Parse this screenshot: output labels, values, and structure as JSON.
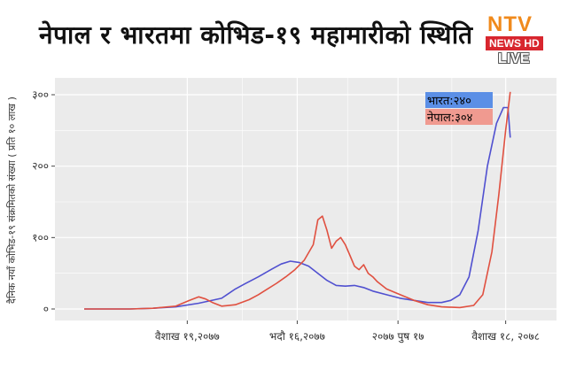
{
  "header": {
    "title": "नेपाल र भारतमा कोभिड-१९ महामारीको स्थिति"
  },
  "logo": {
    "brand": "NTV",
    "sub": "NEWS HD",
    "live": "LIVE"
  },
  "colors": {
    "india": "#5050d0",
    "nepal": "#e05040",
    "panel": "#ebebeb",
    "grid": "#ffffff",
    "india_label_bg": "#5b8fe6",
    "nepal_label_bg": "#f09a90"
  },
  "chart_data": {
    "type": "line",
    "title": "नेपाल र भारतमा कोभिड-१९ महामारीको स्थिति",
    "ylabel": "दैनिक नयाँ कोभिड-१९ संक्रमितको संख्या ( प्रति १० लाख )",
    "xlabel": "",
    "ylim": [
      -10,
      310
    ],
    "xlim": [
      0,
      100
    ],
    "yticks": [
      {
        "value": 0,
        "label": "०"
      },
      {
        "value": 100,
        "label": "१००"
      },
      {
        "value": 200,
        "label": "२००"
      },
      {
        "value": 300,
        "label": "३००"
      }
    ],
    "xticks": [
      {
        "value": 22.5,
        "label": "वैशाख १९,२०७७"
      },
      {
        "value": 46.5,
        "label": "भदौ १६,२०७७"
      },
      {
        "value": 68.5,
        "label": "२०७७ पुष १७"
      },
      {
        "value": 92,
        "label": "वैशाख १८, २०७८"
      }
    ],
    "annotations": [
      {
        "label": "भारत:२४०",
        "series": "भारत"
      },
      {
        "label": "नेपाल:३०४",
        "series": "नेपाल"
      }
    ],
    "grid": true,
    "series": [
      {
        "name": "भारत",
        "color": "#5050d0",
        "points": [
          [
            0,
            0
          ],
          [
            5,
            0
          ],
          [
            10,
            0
          ],
          [
            15,
            1
          ],
          [
            20,
            3
          ],
          [
            25,
            8
          ],
          [
            30,
            15
          ],
          [
            33,
            28
          ],
          [
            35,
            35
          ],
          [
            38,
            45
          ],
          [
            41,
            56
          ],
          [
            43,
            63
          ],
          [
            45,
            67
          ],
          [
            47,
            65
          ],
          [
            49,
            60
          ],
          [
            51,
            50
          ],
          [
            53,
            40
          ],
          [
            55,
            33
          ],
          [
            57,
            32
          ],
          [
            59,
            33
          ],
          [
            61,
            30
          ],
          [
            63,
            25
          ],
          [
            66,
            20
          ],
          [
            69,
            15
          ],
          [
            72,
            12
          ],
          [
            75,
            9
          ],
          [
            78,
            9
          ],
          [
            80,
            12
          ],
          [
            82,
            20
          ],
          [
            84,
            45
          ],
          [
            86,
            110
          ],
          [
            88,
            200
          ],
          [
            90,
            260
          ],
          [
            91.5,
            282
          ],
          [
            92.5,
            282
          ],
          [
            93,
            240
          ]
        ]
      },
      {
        "name": "नेपाल",
        "color": "#e05040",
        "points": [
          [
            0,
            0
          ],
          [
            10,
            0
          ],
          [
            15,
            1
          ],
          [
            20,
            4
          ],
          [
            23,
            12
          ],
          [
            25,
            17
          ],
          [
            26.5,
            14
          ],
          [
            28,
            9
          ],
          [
            30,
            4
          ],
          [
            33,
            6
          ],
          [
            36,
            13
          ],
          [
            38,
            20
          ],
          [
            40,
            28
          ],
          [
            42,
            36
          ],
          [
            44,
            45
          ],
          [
            46,
            55
          ],
          [
            48,
            68
          ],
          [
            50,
            90
          ],
          [
            51,
            125
          ],
          [
            52,
            130
          ],
          [
            53,
            110
          ],
          [
            54,
            85
          ],
          [
            55,
            95
          ],
          [
            56,
            100
          ],
          [
            57,
            90
          ],
          [
            58,
            75
          ],
          [
            59,
            60
          ],
          [
            60,
            55
          ],
          [
            61,
            62
          ],
          [
            62,
            50
          ],
          [
            63,
            45
          ],
          [
            64,
            38
          ],
          [
            66,
            28
          ],
          [
            69,
            20
          ],
          [
            72,
            12
          ],
          [
            75,
            6
          ],
          [
            78,
            3
          ],
          [
            82,
            2
          ],
          [
            85,
            5
          ],
          [
            87,
            20
          ],
          [
            89,
            80
          ],
          [
            90.5,
            160
          ],
          [
            92,
            250
          ],
          [
            93,
            304
          ]
        ]
      }
    ]
  }
}
